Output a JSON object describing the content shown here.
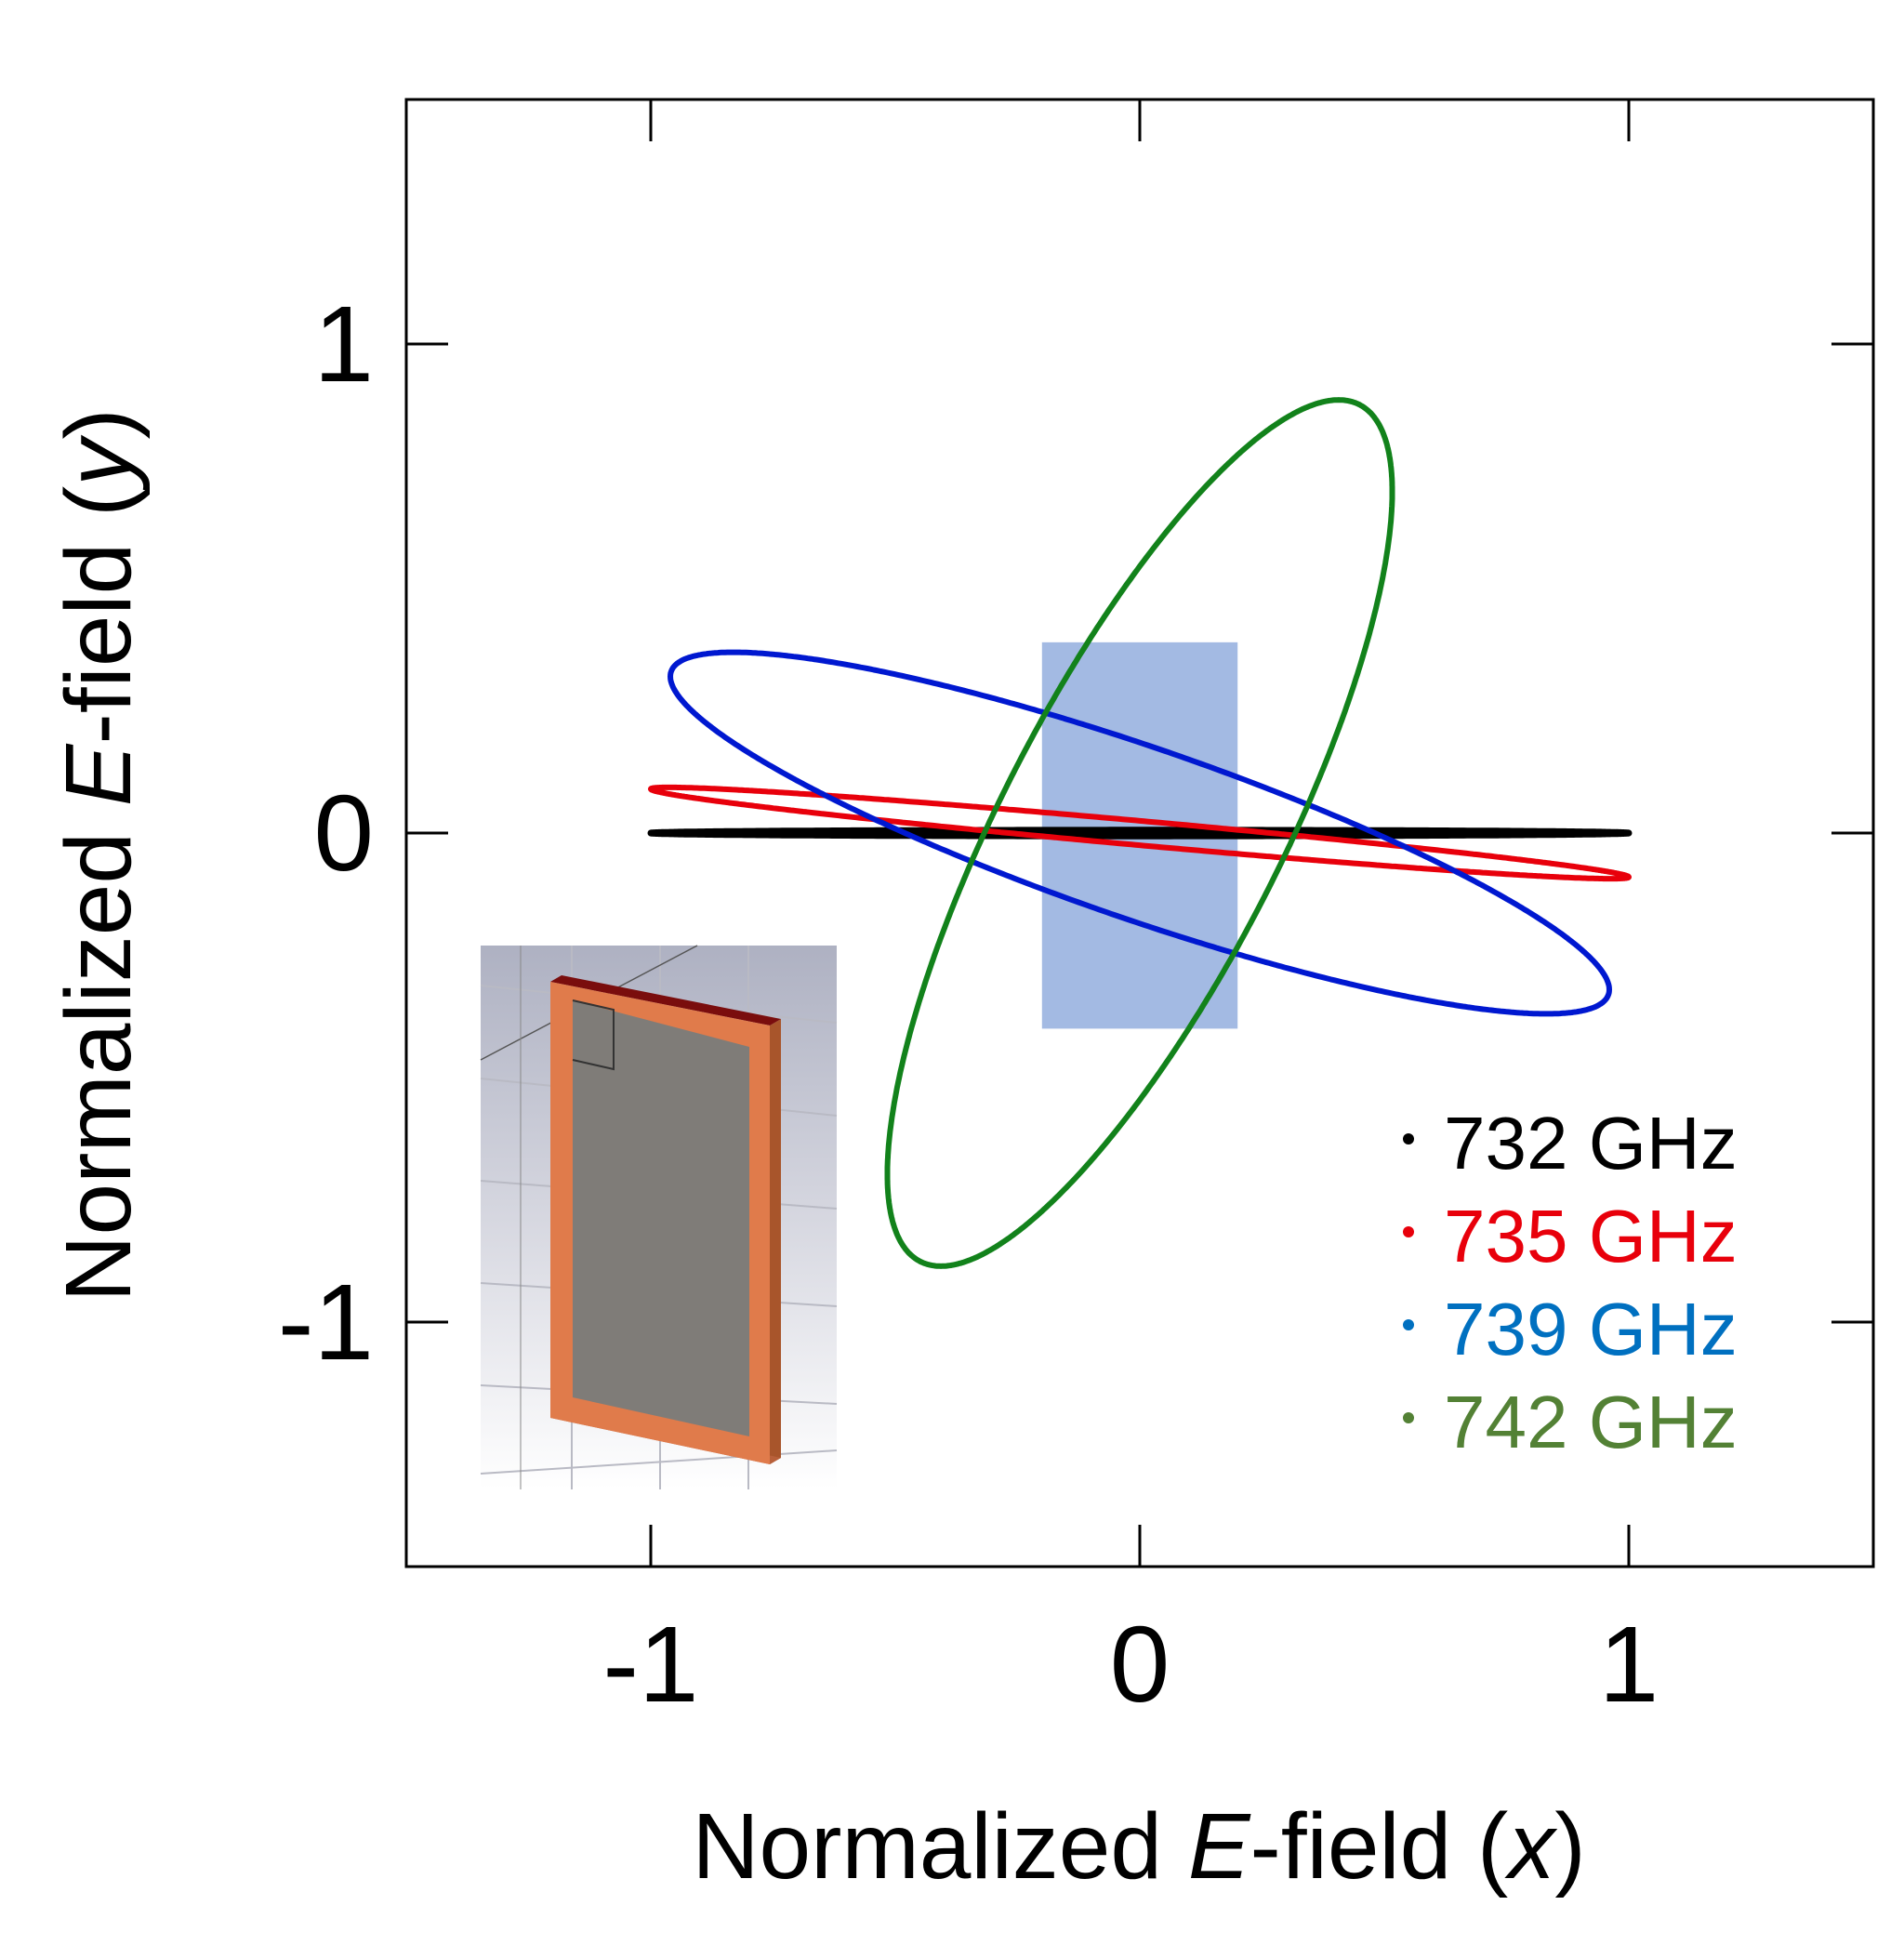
{
  "chart_data": {
    "type": "line",
    "title": "",
    "xlabel": {
      "prefix": "Normalized ",
      "italic": "E",
      "middle": "-field (",
      "var": "x",
      "suffix": ")"
    },
    "ylabel": {
      "prefix": "Normalized ",
      "italic": "E",
      "middle": "-field (",
      "var": "y",
      "suffix": ")"
    },
    "xlim": [
      -1.5,
      1.5
    ],
    "ylim": [
      -1.5,
      1.5
    ],
    "xticks": [
      -1,
      0,
      1
    ],
    "yticks": [
      -1,
      0,
      1
    ],
    "xtick_labels": [
      "-1",
      "0",
      "1"
    ],
    "ytick_labels": [
      "-1",
      "0",
      "1"
    ],
    "series": [
      {
        "name": "732 GHz",
        "color": "#000000",
        "text_color": "#000000",
        "ellipse": {
          "ax": 1.0,
          "bx": 0.0,
          "ay": 0.0,
          "by": 0.006
        }
      },
      {
        "name": "735 GHz",
        "color": "#e8000b",
        "text_color": "#e8000b",
        "ellipse": {
          "ax": 1.0,
          "bx": 0.0,
          "ay": -0.09,
          "by": 0.025
        }
      },
      {
        "name": "739 GHz",
        "color": "#0018d0",
        "text_color": "#0070c0",
        "ellipse": {
          "ax": 0.96,
          "bx": 0.0,
          "ay": -0.32,
          "by": 0.185
        }
      },
      {
        "name": "742 GHz",
        "color": "#12821b",
        "text_color": "#538135",
        "ellipse": {
          "ax": 0.44,
          "bx": 0.27,
          "ay": 0.88,
          "by": -0.1
        }
      }
    ],
    "highlight_box": {
      "x": [
        -0.2,
        0.2
      ],
      "y": [
        -0.4,
        0.39
      ],
      "color": "#7f9fd8"
    },
    "legend_position": "lower-right",
    "inset": "3D model of rectangular resonator structure"
  }
}
